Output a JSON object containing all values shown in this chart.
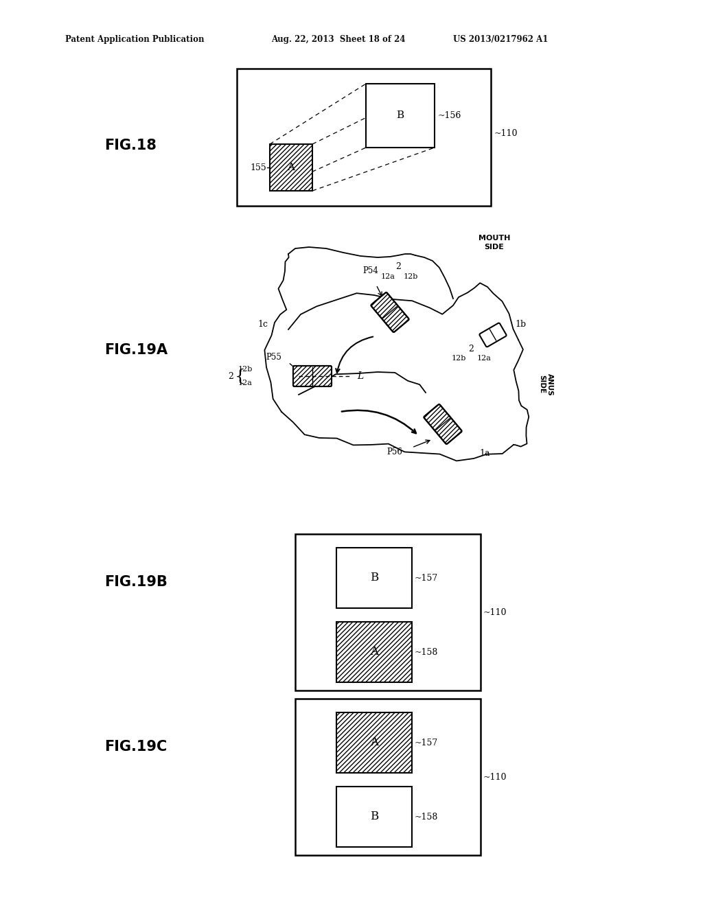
{
  "bg_color": "#ffffff",
  "header_left": "Patent Application Publication",
  "header_mid": "Aug. 22, 2013  Sheet 18 of 24",
  "header_right": "US 2013/0217962 A1",
  "fig18_label": "FIG.18",
  "fig19a_label": "FIG.19A",
  "fig19b_label": "FIG.19B",
  "fig19c_label": "FIG.19C",
  "hatch_pattern": "/////"
}
